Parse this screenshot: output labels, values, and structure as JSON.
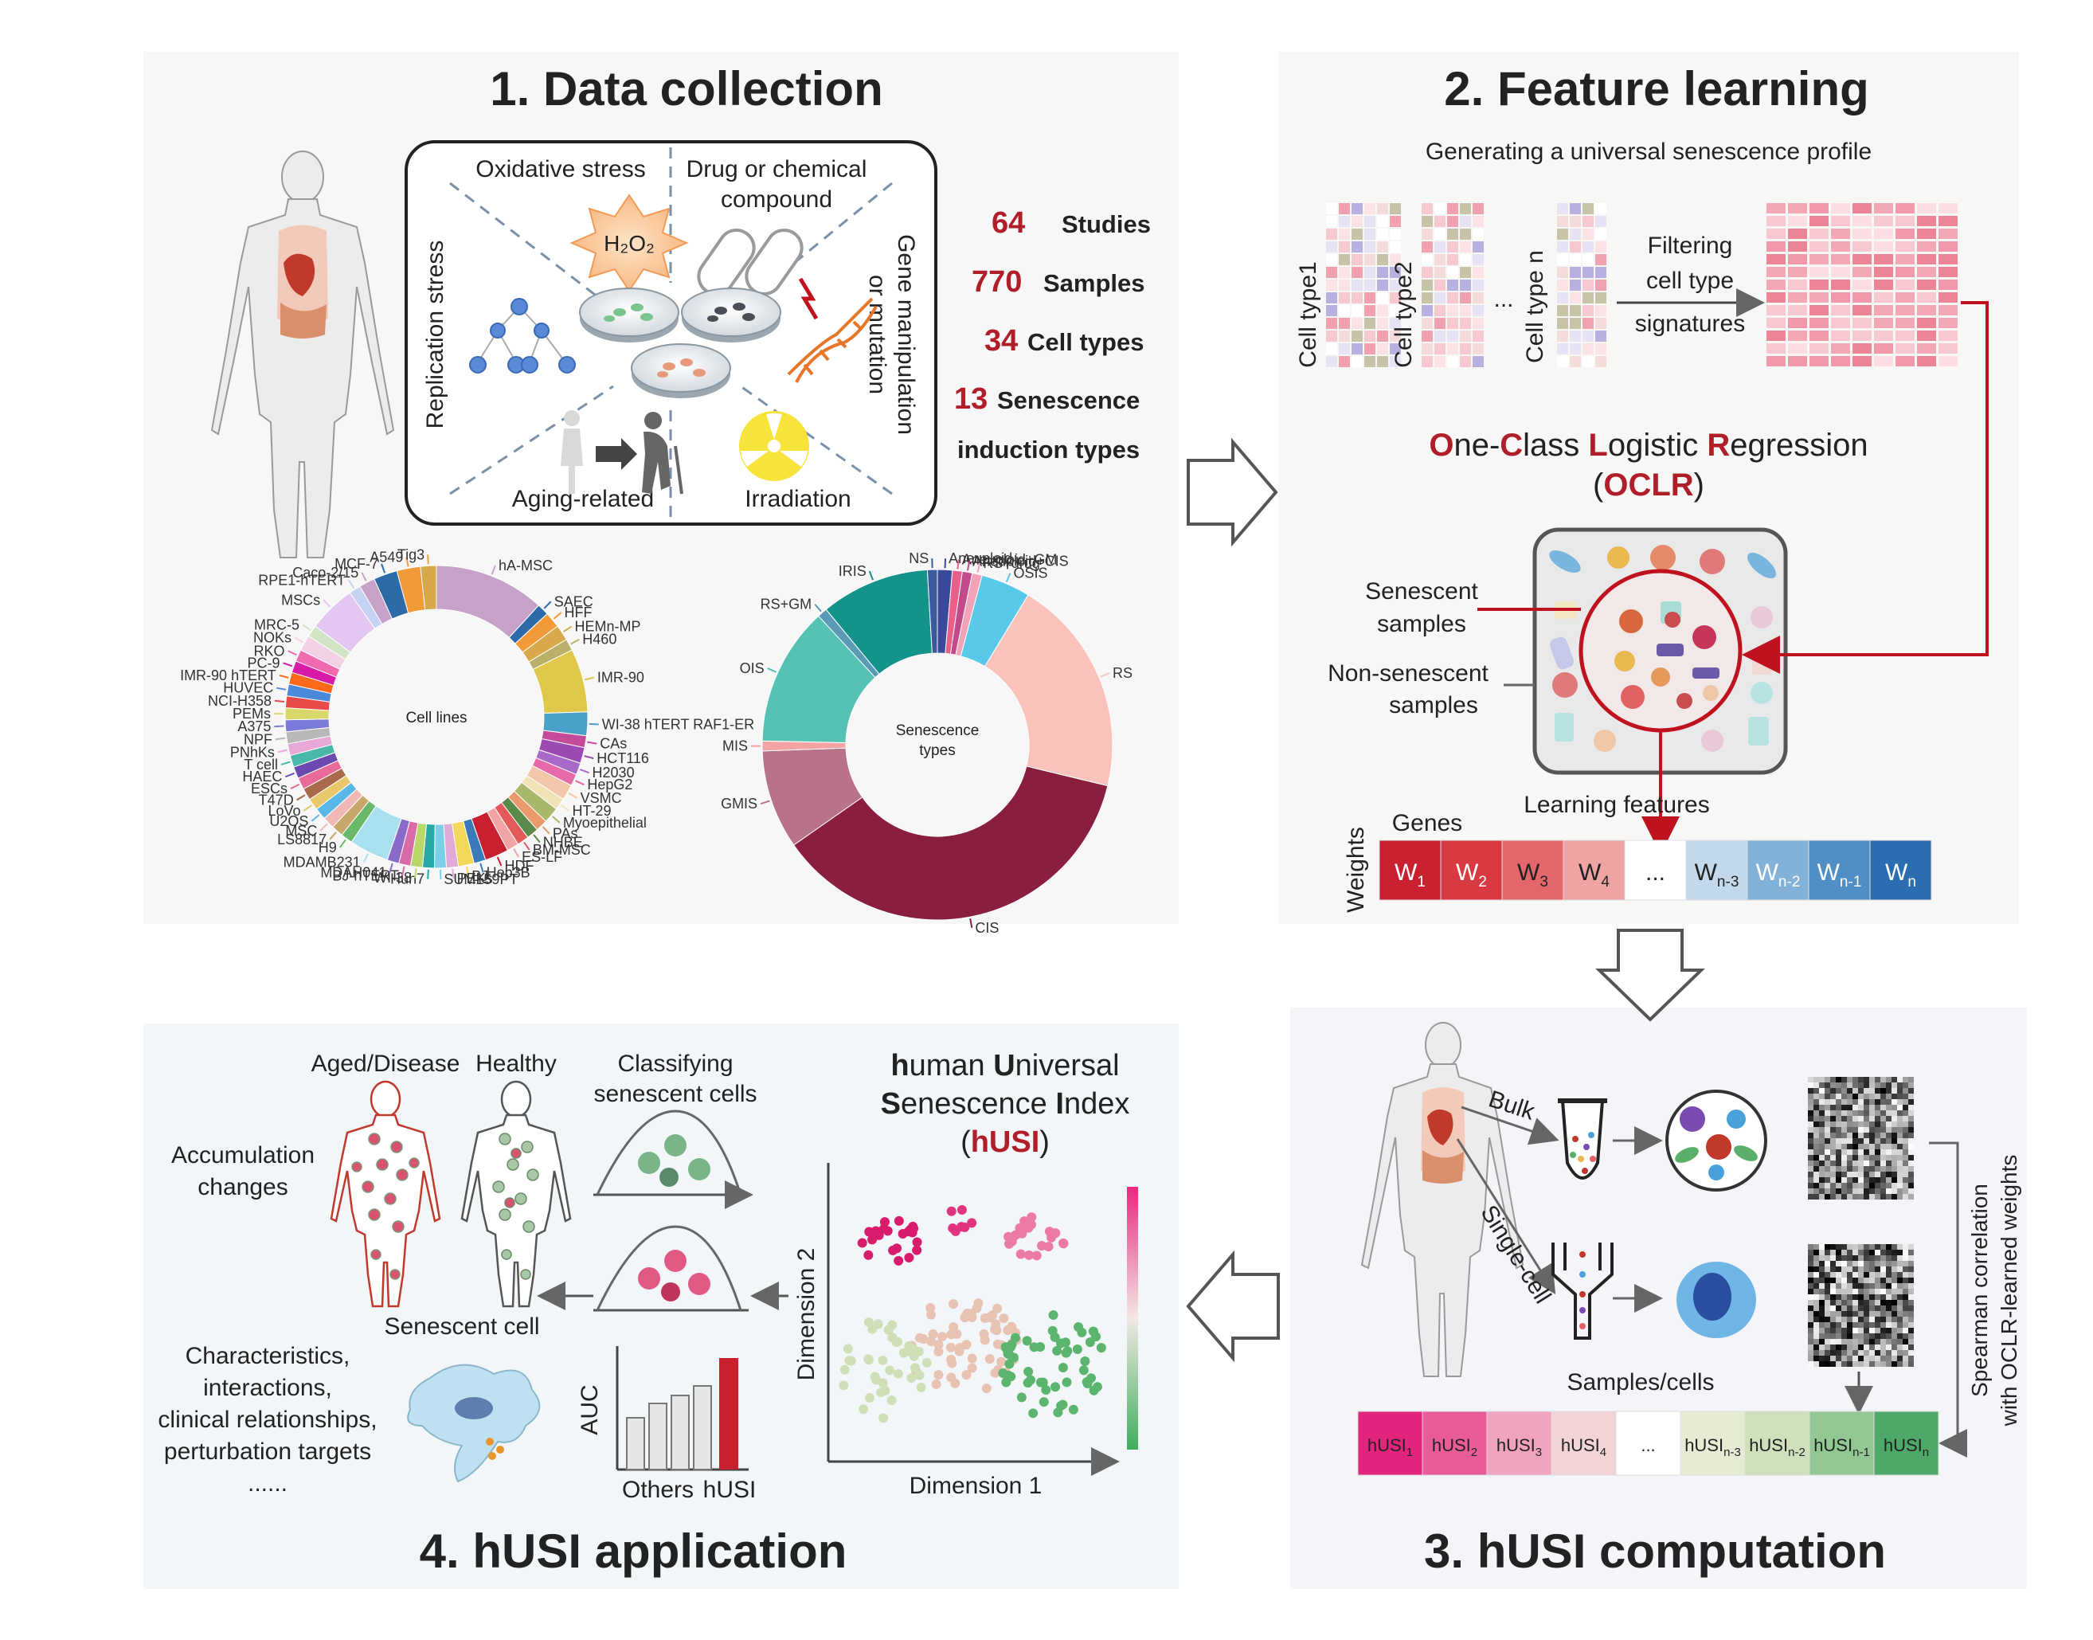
{
  "panel1": {
    "title": "1. Data collection",
    "induction_labels": [
      "Oxidative stress",
      "Drug or chemical",
      "compound",
      "Replication stress",
      "Gene manipulation",
      "or mutation",
      "Aging-related",
      "Irradiation",
      "H₂O₂"
    ],
    "stats": [
      {
        "number": "64",
        "label": "Studies"
      },
      {
        "number": "770",
        "label": "Samples"
      },
      {
        "number": "34",
        "label": "Cell types"
      },
      {
        "number": "13",
        "label": "Senescence"
      }
    ],
    "stats_extra": "induction types",
    "donut_cell": {
      "center": "Cell lines",
      "labels": [
        "hA-MSC",
        "SAEC",
        "HFF",
        "HEMn-MP",
        "H460",
        "IMR-90",
        "WI-38 hTERT RAF1-ER",
        "CAs",
        "HCT116",
        "H2030",
        "HepG2",
        "VSMC",
        "HT-29",
        "Myoepithelial",
        "PAs",
        "NHBE",
        "BM-MSC",
        "ES-LF",
        "HDF",
        "Hep3B",
        "BJ",
        "PEKs",
        "SUM159PT",
        "Huh7",
        "WI-38",
        "BJ-hTERT",
        "MDAH041",
        "MDAMB231",
        "H9",
        "LS8817",
        "MSC",
        "U2OS",
        "LoVo",
        "T47D",
        "ESCs",
        "HAEC",
        "T cell",
        "PNhKs",
        "NPF",
        "A375",
        "PEMs",
        "NCI-H358",
        "HUVEC",
        "IMR-90 hTERT",
        "PC-9",
        "RKO",
        "NOKs",
        "MRC-5",
        "MSCs",
        "RPE1-hTERT",
        "Caco-2/15",
        "MCF-7",
        "A549",
        "Tig3"
      ]
    },
    "donut_sen": {
      "center_1": "Senescence",
      "center_2": "types",
      "labels": [
        "Aneuploid",
        "Aneuploid+GM",
        "Aneuploid+CIS",
        "RS+drug",
        "OSIS",
        "RS",
        "CIS",
        "GMIS",
        "MIS",
        "OIS",
        "RS+GM",
        "IRIS",
        "NS"
      ]
    }
  },
  "panel2": {
    "title": "2. Feature learning",
    "subtitle": "Generating a universal senescence profile",
    "celltypes": [
      "Cell type1",
      "Cell type2",
      "...",
      "Cell type n"
    ],
    "filter_1": "Filtering",
    "filter_2": "cell type",
    "filter_3": "signatures",
    "oclr_parts": [
      "O",
      "ne-",
      "C",
      "lass ",
      "L",
      "ogistic ",
      "R",
      "egression"
    ],
    "oclr_abbr_open": "(",
    "oclr_abbr": "OCLR",
    "oclr_abbr_close": ")",
    "senescent": [
      "Senescent",
      "samples"
    ],
    "nonsenescent": [
      "Non-senescent",
      "samples"
    ],
    "learning": "Learning  features",
    "genes": "Genes",
    "weights": "Weights",
    "w_cells": [
      {
        "base": "W",
        "sub": "1",
        "color": "#c8202e",
        "text": "#ffffff"
      },
      {
        "base": "W",
        "sub": "2",
        "color": "#d83a42",
        "text": "#ffffff"
      },
      {
        "base": "W",
        "sub": "3",
        "color": "#e4676b",
        "text": "#222222"
      },
      {
        "base": "W",
        "sub": "4",
        "color": "#f0a3a3",
        "text": "#222222"
      },
      {
        "base": "...",
        "sub": "",
        "color": "#ffffff",
        "text": "#222222"
      },
      {
        "base": "W",
        "sub": "n-3",
        "color": "#c3d8ea",
        "text": "#222222"
      },
      {
        "base": "W",
        "sub": "n-2",
        "color": "#82b2d8",
        "text": "#ffffff"
      },
      {
        "base": "W",
        "sub": "n-1",
        "color": "#4f8fc6",
        "text": "#ffffff"
      },
      {
        "base": "W",
        "sub": "n",
        "color": "#2a6db0",
        "text": "#ffffff"
      }
    ]
  },
  "panel3": {
    "title": "3. hUSI computation",
    "bulk": "Bulk",
    "singlecell": "Single-cell",
    "samples": "Samples/cells",
    "spearman_1": "Spearman   correlation",
    "spearman_2": "with OCLR-learned weights",
    "h_cells": [
      {
        "base": "hUSI",
        "sub": "1",
        "color": "#e2247d"
      },
      {
        "base": "hUSI",
        "sub": "2",
        "color": "#ea5c98"
      },
      {
        "base": "hUSI",
        "sub": "3",
        "color": "#f1a2be"
      },
      {
        "base": "hUSI",
        "sub": "4",
        "color": "#f2d4d6"
      },
      {
        "base": "...",
        "sub": "",
        "color": "#ffffff"
      },
      {
        "base": "hUSI",
        "sub": "n-3",
        "color": "#e5ecd3"
      },
      {
        "base": "hUSI",
        "sub": "n-2",
        "color": "#cfe0bd"
      },
      {
        "base": "hUSI",
        "sub": "n-1",
        "color": "#93c895"
      },
      {
        "base": "hUSI",
        "sub": "n",
        "color": "#4ea86a"
      }
    ]
  },
  "panel4": {
    "title": "4. hUSI application",
    "aged": "Aged/Disease",
    "healthy": "Healthy",
    "classifying_1": "Classifying",
    "classifying_2": "senescent cells",
    "accum_1": "Accumulation",
    "accum_2": "changes",
    "husi_1a": "h",
    "husi_1b": "uman ",
    "husi_1c": "U",
    "husi_1d": "niversal",
    "husi_2a": "S",
    "husi_2b": "enescence ",
    "husi_2c": "I",
    "husi_2d": "ndex",
    "husi_3a": "(",
    "husi_3b": "hUSI",
    "husi_3c": ")",
    "dim1": "Dimension 1",
    "dim2": "Dimension 2",
    "auc": "AUC",
    "others": "Others",
    "husi": "hUSI",
    "sencell": "Senescent cell",
    "char": [
      "Characteristics,",
      "interactions,",
      "clinical relationships,",
      "perturbation  targets",
      "......"
    ]
  }
}
